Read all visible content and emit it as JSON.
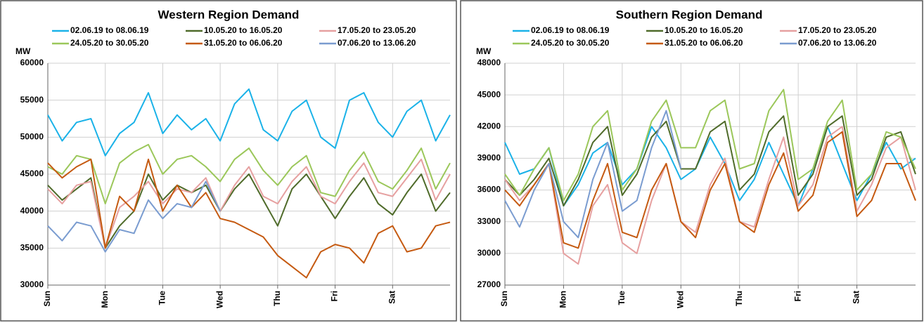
{
  "chart_data": [
    {
      "type": "line",
      "title": "Western Region Demand",
      "y_label": "MW",
      "x": [
        0,
        0.25,
        0.5,
        0.75,
        1,
        1.25,
        1.5,
        1.75,
        2,
        2.25,
        2.5,
        2.75,
        3,
        3.25,
        3.5,
        3.75,
        4,
        4.25,
        4.5,
        4.75,
        5,
        5.25,
        5.5,
        5.75,
        6,
        6.25,
        6.5,
        6.75,
        7
      ],
      "xlim": [
        0,
        7
      ],
      "xticks": [
        {
          "value": 0,
          "label": "Sun"
        },
        {
          "value": 1,
          "label": "Mon"
        },
        {
          "value": 2,
          "label": "Tue"
        },
        {
          "value": 3,
          "label": "Wed"
        },
        {
          "value": 4,
          "label": "Thu"
        },
        {
          "value": 5,
          "label": "Fri"
        },
        {
          "value": 6,
          "label": "Sat"
        }
      ],
      "ylim": [
        30000,
        60000
      ],
      "yticks": [
        30000,
        35000,
        40000,
        45000,
        50000,
        55000,
        60000
      ],
      "grid": true,
      "series": [
        {
          "name": "02.06.19 to 08.06.19",
          "color": "#1ab2e8",
          "values": [
            53000,
            49500,
            52000,
            52500,
            47500,
            50500,
            52000,
            56000,
            50500,
            53000,
            51000,
            52500,
            49500,
            54500,
            56500,
            51000,
            49500,
            53500,
            55000,
            50000,
            48500,
            55000,
            56000,
            52000,
            50000,
            53500,
            55000,
            49500,
            53000
          ]
        },
        {
          "name": "10.05.20 to 16.05.20",
          "color": "#4f6b2a",
          "values": [
            43500,
            41500,
            43000,
            44500,
            35000,
            38000,
            40000,
            45000,
            41500,
            43500,
            42500,
            43500,
            40000,
            43000,
            45000,
            41500,
            38000,
            43000,
            45000,
            42000,
            39000,
            42000,
            44500,
            41000,
            39500,
            42500,
            45000,
            40000,
            42500
          ]
        },
        {
          "name": "17.05.20 to 23.05.20",
          "color": "#e6a0a0",
          "values": [
            43000,
            41000,
            43500,
            44000,
            35000,
            40500,
            42000,
            44000,
            41000,
            43000,
            42500,
            44500,
            40000,
            43500,
            46000,
            42000,
            41000,
            44000,
            46000,
            42000,
            41000,
            44000,
            46500,
            42500,
            42000,
            44500,
            47000,
            41500,
            45000
          ]
        },
        {
          "name": "24.05.20 to 30.05.20",
          "color": "#9bc75a",
          "values": [
            46000,
            45000,
            47500,
            47000,
            41000,
            46500,
            48000,
            49000,
            45000,
            47000,
            47500,
            46000,
            44000,
            47000,
            48500,
            45500,
            43500,
            46000,
            47500,
            42500,
            42000,
            45500,
            48000,
            44000,
            43000,
            45500,
            48500,
            43000,
            46500
          ]
        },
        {
          "name": "31.05.20 to 06.06.20",
          "color": "#c55a11",
          "values": [
            46500,
            44500,
            46000,
            47000,
            35000,
            42000,
            40000,
            47000,
            40000,
            43500,
            40500,
            42500,
            39000,
            38500,
            37500,
            36500,
            34000,
            32500,
            31000,
            34500,
            35500,
            35000,
            33000,
            37000,
            38000,
            34500,
            35000,
            38000,
            38500
          ]
        },
        {
          "name": "07.06.20 to 13.06.20",
          "color": "#7a9cd0",
          "values": [
            38000,
            36000,
            38500,
            38000,
            34500,
            37500,
            37000,
            41500,
            39000,
            41000,
            40500,
            44000,
            40000,
            null,
            null,
            null,
            null,
            null,
            null,
            null,
            null,
            null,
            null,
            null,
            null,
            null,
            null,
            null,
            null
          ]
        }
      ]
    },
    {
      "type": "line",
      "title": "Southern Region Demand",
      "y_label": "MW",
      "x": [
        0,
        0.25,
        0.5,
        0.75,
        1,
        1.25,
        1.5,
        1.75,
        2,
        2.25,
        2.5,
        2.75,
        3,
        3.25,
        3.5,
        3.75,
        4,
        4.25,
        4.5,
        4.75,
        5,
        5.25,
        5.5,
        5.75,
        6,
        6.25,
        6.5,
        6.75,
        7
      ],
      "xlim": [
        0,
        7
      ],
      "xticks": [
        {
          "value": 0,
          "label": "Sun"
        },
        {
          "value": 1,
          "label": "Mon"
        },
        {
          "value": 2,
          "label": "Tue"
        },
        {
          "value": 3,
          "label": "Wed"
        },
        {
          "value": 4,
          "label": "Thu"
        },
        {
          "value": 5,
          "label": "Fri"
        },
        {
          "value": 6,
          "label": "Sat"
        }
      ],
      "ylim": [
        27000,
        48000
      ],
      "yticks": [
        27000,
        30000,
        33000,
        36000,
        39000,
        42000,
        45000,
        48000
      ],
      "grid": true,
      "series": [
        {
          "name": "02.06.19 to 08.06.19",
          "color": "#1ab2e8",
          "values": [
            40500,
            37500,
            38000,
            40000,
            34500,
            36500,
            39500,
            40500,
            36500,
            38000,
            42000,
            40000,
            37000,
            38000,
            41000,
            38500,
            35000,
            37000,
            40500,
            37500,
            34500,
            38000,
            42000,
            38500,
            35000,
            37500,
            40500,
            38000,
            39000
          ]
        },
        {
          "name": "10.05.20 to 16.05.20",
          "color": "#4f6b2a",
          "values": [
            37000,
            35500,
            37000,
            39000,
            34500,
            37000,
            40500,
            42000,
            35500,
            37500,
            41000,
            42500,
            38000,
            38000,
            41500,
            42500,
            36000,
            37500,
            41500,
            43000,
            35500,
            37500,
            42000,
            43000,
            35500,
            37000,
            41000,
            41500,
            37500
          ]
        },
        {
          "name": "17.05.20 to 23.05.20",
          "color": "#e6a0a0",
          "values": [
            37000,
            35000,
            36500,
            38500,
            30000,
            29000,
            34500,
            36500,
            31000,
            30000,
            35000,
            38500,
            33000,
            32000,
            36500,
            39000,
            33000,
            32500,
            37000,
            41000,
            34500,
            36500,
            41000,
            42000,
            34000,
            36500,
            40000,
            41000,
            36000
          ]
        },
        {
          "name": "24.05.20 to 30.05.20",
          "color": "#9bc75a",
          "values": [
            37500,
            35500,
            38000,
            40000,
            35000,
            37500,
            42000,
            43500,
            36000,
            38000,
            42500,
            44500,
            40000,
            40000,
            43500,
            44500,
            38000,
            38500,
            43500,
            45500,
            37000,
            38000,
            42500,
            44500,
            36000,
            37500,
            41500,
            41000,
            38000
          ]
        },
        {
          "name": "31.05.20 to 06.06.20",
          "color": "#c55a11",
          "values": [
            36000,
            34500,
            36500,
            38500,
            31000,
            30500,
            35000,
            38500,
            32000,
            31500,
            36000,
            38500,
            33000,
            31500,
            36000,
            38500,
            33000,
            32000,
            36500,
            39500,
            34000,
            35500,
            40500,
            41500,
            33500,
            35000,
            38500,
            38500,
            35000
          ]
        },
        {
          "name": "07.06.20 to 13.06.20",
          "color": "#7a9cd0",
          "values": [
            35000,
            32500,
            36000,
            38500,
            33000,
            31500,
            37000,
            40500,
            34000,
            35000,
            40000,
            43500,
            38000,
            null,
            null,
            null,
            null,
            null,
            null,
            null,
            null,
            null,
            null,
            null,
            null,
            null,
            null,
            null,
            null
          ]
        }
      ]
    }
  ]
}
